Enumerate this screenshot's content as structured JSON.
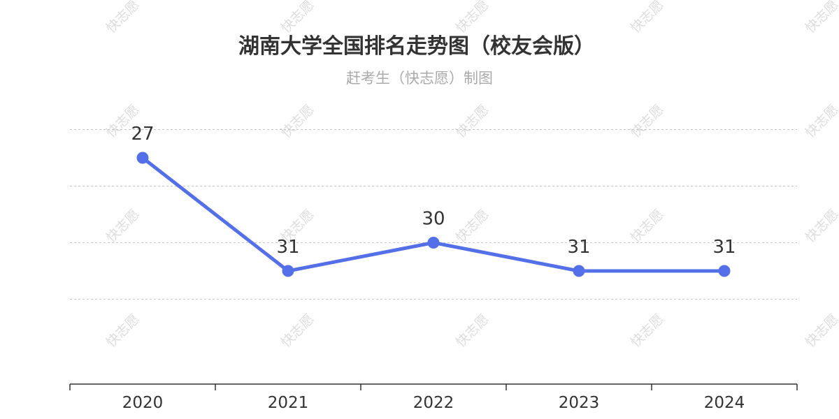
{
  "watermark_text": "快志愿",
  "chart_data": {
    "type": "line",
    "title": "湖南大学全国排名走势图（校友会版）",
    "subtitle": "赶考生（快志愿）制图",
    "categories": [
      "2020",
      "2021",
      "2022",
      "2023",
      "2024"
    ],
    "series": [
      {
        "values": [
          27,
          31,
          30,
          31,
          31
        ],
        "color": "#5470e8"
      }
    ],
    "y_inverse": true,
    "ylim": [
      25,
      35
    ],
    "grid": "dashed horizontal",
    "xlabel": "",
    "ylabel": ""
  }
}
